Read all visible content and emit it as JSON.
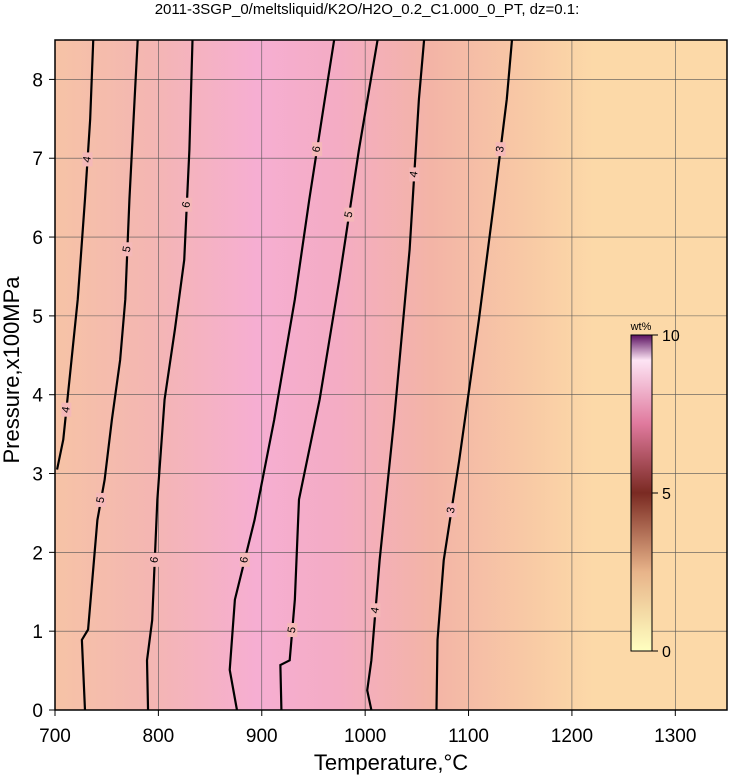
{
  "chart_data": {
    "type": "contour",
    "title": "2011-3SGP_0/meltsliquid/K2O/H2O_0.2_C1.000_0_PT, dz=0.1:",
    "x_label": "Temperature,°C",
    "y_label": "Pressure,x100MPa",
    "xlim": [
      700,
      1350
    ],
    "ylim": [
      0,
      8.5
    ],
    "xticks": [
      700,
      800,
      900,
      1000,
      1100,
      1200,
      1300
    ],
    "yticks": [
      0,
      1,
      2,
      3,
      4,
      5,
      6,
      7,
      8
    ],
    "grid": true,
    "colorbar": {
      "label": "wt%",
      "lim": [
        0,
        10
      ],
      "ticks": [
        0,
        5,
        10
      ]
    },
    "contours": [
      {
        "level": 4,
        "x": [
          702,
          708,
          714,
          722,
          729,
          734,
          737
        ],
        "y": [
          3.05,
          3.43,
          4.19,
          5.21,
          6.48,
          7.49,
          8.5
        ]
      },
      {
        "level": 5,
        "x": [
          729,
          726,
          732,
          741,
          748,
          755,
          763,
          768,
          772,
          777,
          780
        ],
        "y": [
          0,
          0.89,
          1.02,
          2.41,
          2.92,
          3.68,
          4.44,
          5.21,
          6.48,
          7.75,
          8.5
        ]
      },
      {
        "level": 6,
        "x": [
          790,
          789,
          794,
          799,
          806,
          816,
          825,
          830,
          833
        ],
        "y": [
          0,
          0.63,
          1.14,
          2.67,
          3.94,
          4.83,
          5.71,
          7.11,
          8.5
        ]
      },
      {
        "level": 6,
        "x": [
          876,
          869,
          874,
          893,
          912,
          932,
          946,
          961,
          970
        ],
        "y": [
          0,
          0.51,
          1.4,
          2.41,
          3.68,
          5.21,
          6.48,
          7.75,
          8.5
        ]
      },
      {
        "level": 5,
        "x": [
          919,
          918,
          927,
          932,
          936,
          956,
          975,
          994,
          1012
        ],
        "y": [
          0,
          0.57,
          0.63,
          1.4,
          2.67,
          3.94,
          5.46,
          7.11,
          8.5
        ]
      },
      {
        "level": 4,
        "x": [
          1006,
          1002,
          1006,
          1014,
          1028,
          1043,
          1052,
          1057
        ],
        "y": [
          0,
          0.25,
          0.63,
          1.9,
          3.68,
          5.84,
          7.75,
          8.5
        ]
      },
      {
        "level": 3,
        "x": [
          1069,
          1070,
          1076,
          1091,
          1110,
          1125,
          1137,
          1142
        ],
        "y": [
          0,
          0.89,
          1.9,
          3.17,
          4.95,
          6.48,
          7.75,
          8.5
        ]
      }
    ]
  }
}
